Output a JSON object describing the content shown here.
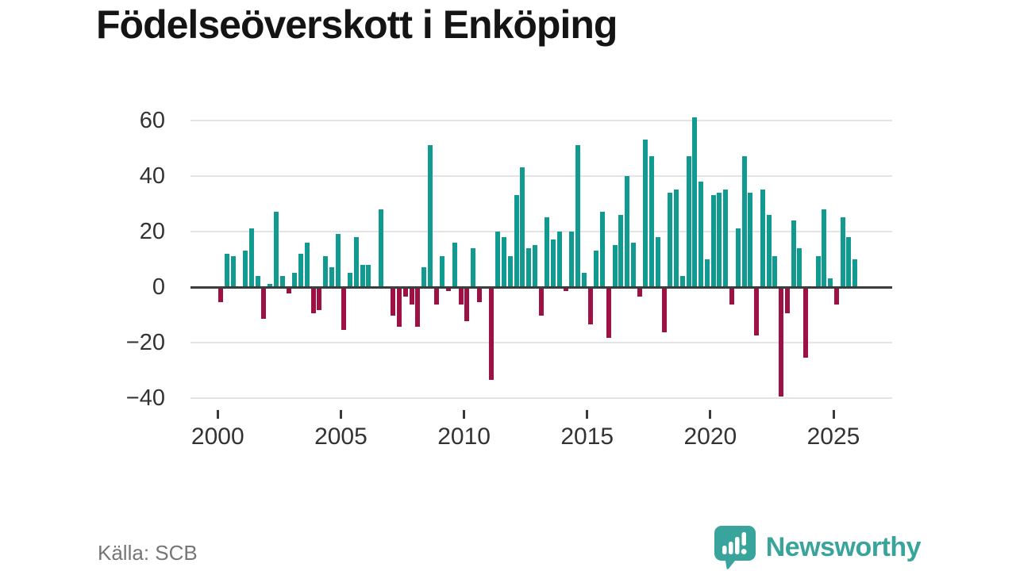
{
  "title": "Födelseöverskott i Enköping",
  "source": {
    "label": "Källa: SCB"
  },
  "brand": {
    "name": "Newsworthy",
    "icon": "newsworthy-speech-bubble-chart-icon",
    "color": "#38a49b"
  },
  "colors": {
    "positive_bar": "#119a8f",
    "negative_bar": "#9e1145",
    "gridline": "#e4e4e4",
    "zero_line": "#3c3c3c",
    "axis_text": "#333333",
    "title_text": "#141414",
    "source_text": "#767676",
    "background": "#ffffff"
  },
  "chart_data": {
    "type": "bar",
    "title": "Födelseöverskott i Enköping",
    "frequency": "quarterly",
    "x_start": "2000 Q1",
    "x_end": "2025 Q4",
    "ylim": [
      -40,
      60
    ],
    "yticks": [
      60,
      40,
      20,
      0,
      -20,
      -40
    ],
    "xticks": [
      2000,
      2005,
      2010,
      2015,
      2020,
      2025
    ],
    "grid": true,
    "legend": false,
    "series_by_year": [
      {
        "year": 2000,
        "quarters": [
          -5,
          12,
          11,
          0
        ]
      },
      {
        "year": 2001,
        "quarters": [
          13,
          21,
          4,
          -11
        ]
      },
      {
        "year": 2002,
        "quarters": [
          1,
          27,
          4,
          -2
        ]
      },
      {
        "year": 2003,
        "quarters": [
          5,
          12,
          16,
          -9
        ]
      },
      {
        "year": 2004,
        "quarters": [
          -8,
          11,
          7,
          19
        ]
      },
      {
        "year": 2005,
        "quarters": [
          -15,
          5,
          18,
          8
        ]
      },
      {
        "year": 2006,
        "quarters": [
          8,
          0,
          28,
          0
        ]
      },
      {
        "year": 2007,
        "quarters": [
          -10,
          -14,
          -3,
          -6
        ]
      },
      {
        "year": 2008,
        "quarters": [
          -14,
          7,
          51,
          -6
        ]
      },
      {
        "year": 2009,
        "quarters": [
          11,
          -1,
          16,
          -6
        ]
      },
      {
        "year": 2010,
        "quarters": [
          -12,
          14,
          -5,
          0
        ]
      },
      {
        "year": 2011,
        "quarters": [
          -33,
          20,
          18,
          11
        ]
      },
      {
        "year": 2012,
        "quarters": [
          33,
          43,
          14,
          15
        ]
      },
      {
        "year": 2013,
        "quarters": [
          -10,
          25,
          17,
          20
        ]
      },
      {
        "year": 2014,
        "quarters": [
          -1,
          20,
          51,
          5
        ]
      },
      {
        "year": 2015,
        "quarters": [
          -13,
          13,
          27,
          -18
        ]
      },
      {
        "year": 2016,
        "quarters": [
          15,
          26,
          40,
          16
        ]
      },
      {
        "year": 2017,
        "quarters": [
          -3,
          53,
          47,
          18
        ]
      },
      {
        "year": 2018,
        "quarters": [
          -16,
          34,
          35,
          4
        ]
      },
      {
        "year": 2019,
        "quarters": [
          47,
          61,
          38,
          10
        ]
      },
      {
        "year": 2020,
        "quarters": [
          33,
          34,
          35,
          -6
        ]
      },
      {
        "year": 2021,
        "quarters": [
          21,
          47,
          34,
          -17
        ]
      },
      {
        "year": 2022,
        "quarters": [
          35,
          26,
          11,
          -39
        ]
      },
      {
        "year": 2023,
        "quarters": [
          -9,
          24,
          14,
          -25
        ]
      },
      {
        "year": 2024,
        "quarters": [
          0,
          11,
          28,
          3
        ]
      },
      {
        "year": 2025,
        "quarters": [
          -6,
          25,
          18,
          10
        ]
      }
    ]
  }
}
